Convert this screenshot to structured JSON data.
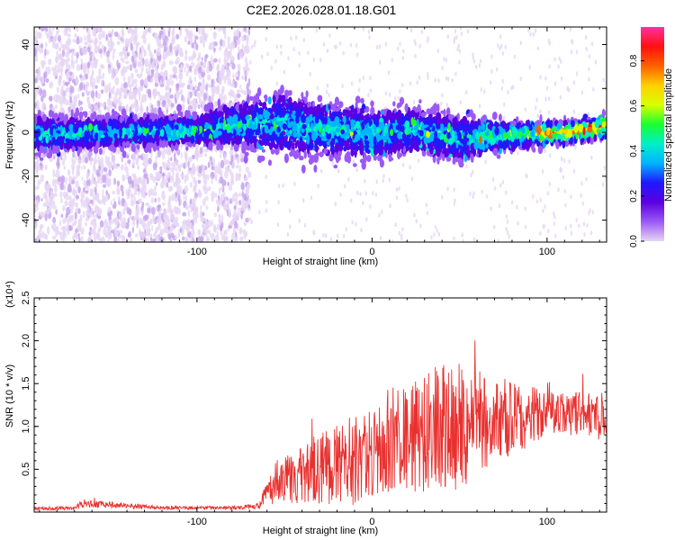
{
  "figure_title": "C2E2.2026.028.01.18.G01",
  "colors": {
    "axis": "#000000",
    "snr_line": "#e8312f",
    "background": "#ffffff"
  },
  "chart_data": [
    {
      "type": "heatmap",
      "name": "spectrogram",
      "title": "C2E2.2026.028.01.18.G01",
      "xlabel": "Height of straight line (km)",
      "ylabel": "Frequency (Hz)",
      "xlim": [
        -193,
        134
      ],
      "ylim": [
        -50,
        48
      ],
      "x_ticks": [
        -100,
        0,
        100
      ],
      "x_tick_labels": [
        "-100",
        "0",
        "100"
      ],
      "y_ticks": [
        -40,
        -20,
        0,
        20,
        40
      ],
      "y_tick_labels": [
        "-40",
        "-20",
        "0",
        "20",
        "40"
      ],
      "ridge": {
        "x": [
          -193,
          -150,
          -100,
          -70,
          -50,
          -25,
          0,
          25,
          50,
          70,
          90,
          110,
          125,
          134
        ],
        "center_hz": [
          -1,
          0,
          1,
          4,
          4,
          1,
          -1,
          1,
          -3,
          -2,
          -1,
          0,
          1,
          3
        ],
        "half_width_hz": [
          7,
          6,
          6,
          10,
          12,
          11,
          10,
          9,
          9,
          6,
          5,
          4,
          4,
          5
        ]
      },
      "colorbar": {
        "label": "Normalized spectral amplitude",
        "range": [
          0.0,
          0.95
        ],
        "ticks": [
          0.0,
          0.2,
          0.4,
          0.6,
          0.8
        ],
        "tick_labels": [
          "0.0",
          "0.2",
          "0.4",
          "0.6",
          "0.8"
        ],
        "colormap": [
          "#e6d6f4",
          "#9b59f5",
          "#5a00e0",
          "#2018ff",
          "#00b4ff",
          "#00f0c8",
          "#18ff30",
          "#d8ff00",
          "#ffd000",
          "#ff6000",
          "#ff1010",
          "#ff30a0"
        ]
      }
    },
    {
      "type": "line",
      "name": "snr",
      "xlabel": "Height of straight line (km)",
      "ylabel": "SNR (10 * v/v)",
      "y_multiplier": "(x10⁴)",
      "xlim": [
        -193,
        134
      ],
      "ylim": [
        0,
        2.5
      ],
      "x_ticks": [
        -100,
        0,
        100
      ],
      "x_tick_labels": [
        "-100",
        "0",
        "100"
      ],
      "y_ticks": [
        0.5,
        1.0,
        1.5,
        2.0,
        2.5
      ],
      "y_tick_labels": [
        "0.5",
        "1.0",
        "1.5",
        "2.0",
        "2.5"
      ],
      "envelope": {
        "x": [
          -193,
          -170,
          -165,
          -120,
          -80,
          -65,
          -55,
          -40,
          -20,
          0,
          20,
          40,
          50,
          60,
          80,
          100,
          120,
          134
        ],
        "mean": [
          0.04,
          0.05,
          0.1,
          0.05,
          0.05,
          0.07,
          0.35,
          0.45,
          0.55,
          0.65,
          0.85,
          1.0,
          1.05,
          1.05,
          1.1,
          1.15,
          1.15,
          1.1
        ],
        "amp": [
          0.02,
          0.02,
          0.05,
          0.02,
          0.02,
          0.03,
          0.25,
          0.35,
          0.5,
          0.55,
          0.65,
          0.75,
          0.8,
          0.6,
          0.45,
          0.25,
          0.25,
          0.3
        ]
      }
    }
  ]
}
